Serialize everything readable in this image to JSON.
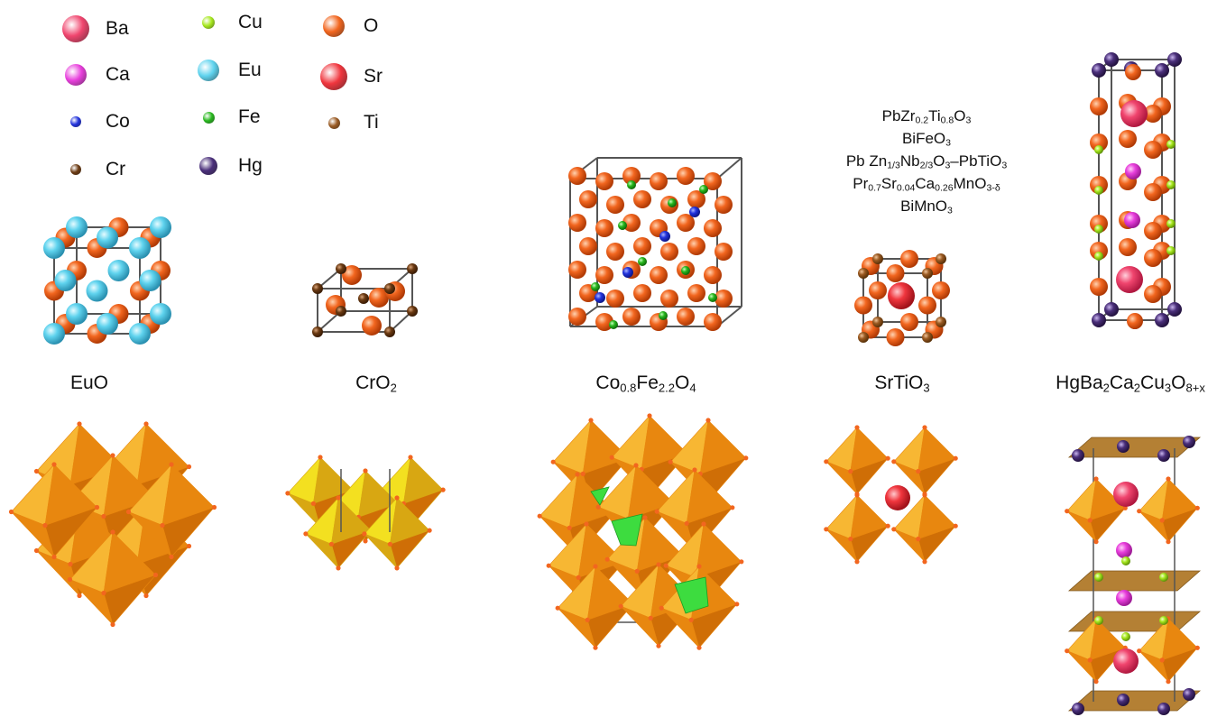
{
  "legend": [
    {
      "symbol": "Ba",
      "color": "#f0456e",
      "size": 30
    },
    {
      "symbol": "Ca",
      "color": "#e83fdc",
      "size": 24
    },
    {
      "symbol": "Co",
      "color": "#2233dd",
      "size": 12
    },
    {
      "symbol": "Cr",
      "color": "#6b3a12",
      "size": 12
    },
    {
      "symbol": "Cu",
      "color": "#a6e81e",
      "size": 14
    },
    {
      "symbol": "Eu",
      "color": "#5fd3ee",
      "size": 24
    },
    {
      "symbol": "Fe",
      "color": "#28b81e",
      "size": 13
    },
    {
      "symbol": "Hg",
      "color": "#4a2f7a",
      "size": 20
    },
    {
      "symbol": "O",
      "color": "#f2661f",
      "size": 24
    },
    {
      "symbol": "Sr",
      "color": "#f0363e",
      "size": 30
    },
    {
      "symbol": "Ti",
      "color": "#9a5a22",
      "size": 13
    }
  ],
  "compounds": [
    {
      "id": "euo",
      "parts": [
        [
          "EuO",
          ""
        ]
      ]
    },
    {
      "id": "cro2",
      "parts": [
        [
          "CrO",
          ""
        ],
        [
          "",
          "2"
        ]
      ]
    },
    {
      "id": "cfo",
      "parts": [
        [
          "Co",
          ""
        ],
        [
          "",
          "0.8"
        ],
        [
          "Fe",
          ""
        ],
        [
          "",
          "2.2"
        ],
        [
          "O",
          ""
        ],
        [
          "",
          "4"
        ]
      ]
    },
    {
      "id": "sto",
      "parts": [
        [
          "SrTiO",
          ""
        ],
        [
          "",
          "3"
        ]
      ]
    },
    {
      "id": "hbcco",
      "parts": [
        [
          "HgBa",
          ""
        ],
        [
          "",
          "2"
        ],
        [
          "Ca",
          ""
        ],
        [
          "",
          "2"
        ],
        [
          "Cu",
          ""
        ],
        [
          "",
          "3"
        ],
        [
          "O",
          ""
        ],
        [
          "",
          "8+x"
        ]
      ]
    }
  ],
  "perovskite_list": [
    [
      [
        "PbZr",
        ""
      ],
      [
        "",
        "0.2"
      ],
      [
        "Ti",
        ""
      ],
      [
        "",
        "0.8"
      ],
      [
        "O",
        ""
      ],
      [
        "",
        "3"
      ]
    ],
    [
      [
        "BiFeO",
        ""
      ],
      [
        "",
        "3"
      ]
    ],
    [
      [
        "Pb Zn",
        ""
      ],
      [
        "",
        "1/3"
      ],
      [
        "Nb",
        ""
      ],
      [
        "",
        "2/3"
      ],
      [
        "O",
        ""
      ],
      [
        "",
        "3"
      ],
      [
        "–PbTiO",
        ""
      ],
      [
        "",
        "3"
      ]
    ],
    [
      [
        "Pr",
        ""
      ],
      [
        "",
        "0.7"
      ],
      [
        "Sr",
        ""
      ],
      [
        "",
        "0.04"
      ],
      [
        "Ca",
        ""
      ],
      [
        "",
        "0.26"
      ],
      [
        "MnO",
        ""
      ],
      [
        "",
        "3-δ"
      ]
    ],
    [
      [
        "BiMnO",
        ""
      ],
      [
        "",
        "3"
      ]
    ]
  ],
  "colors": {
    "octahedron_light": "#f7b733",
    "octahedron_dark": "#e8870f",
    "tetrahedron": "#3ddc3f",
    "cro2_octahedron": "#f3e020",
    "plane": "#b07a2a",
    "cell_edge": "#555555"
  }
}
